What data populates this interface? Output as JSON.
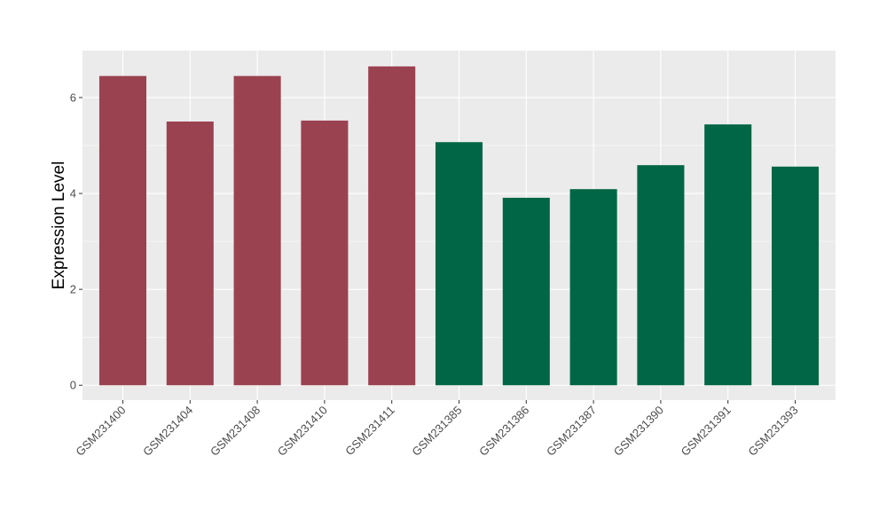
{
  "chart_data": {
    "type": "bar",
    "title": "",
    "xlabel": "",
    "ylabel": "Expression Level",
    "ylim": [
      -0.31,
      6.98
    ],
    "yticks": [
      0,
      2,
      4,
      6
    ],
    "grid": true,
    "categories": [
      "GSM231400",
      "GSM231404",
      "GSM231408",
      "GSM231410",
      "GSM231411",
      "GSM231385",
      "GSM231386",
      "GSM231387",
      "GSM231390",
      "GSM231391",
      "GSM231393"
    ],
    "values": [
      6.45,
      5.5,
      6.45,
      5.52,
      6.65,
      5.07,
      3.91,
      4.09,
      4.59,
      5.44,
      4.56
    ],
    "bar_colors": [
      "#9b4250",
      "#9b4250",
      "#9b4250",
      "#9b4250",
      "#9b4250",
      "#016645",
      "#016645",
      "#016645",
      "#016645",
      "#016645",
      "#016645"
    ],
    "panel_background": "#ebebeb",
    "grid_color": "#ffffff"
  }
}
